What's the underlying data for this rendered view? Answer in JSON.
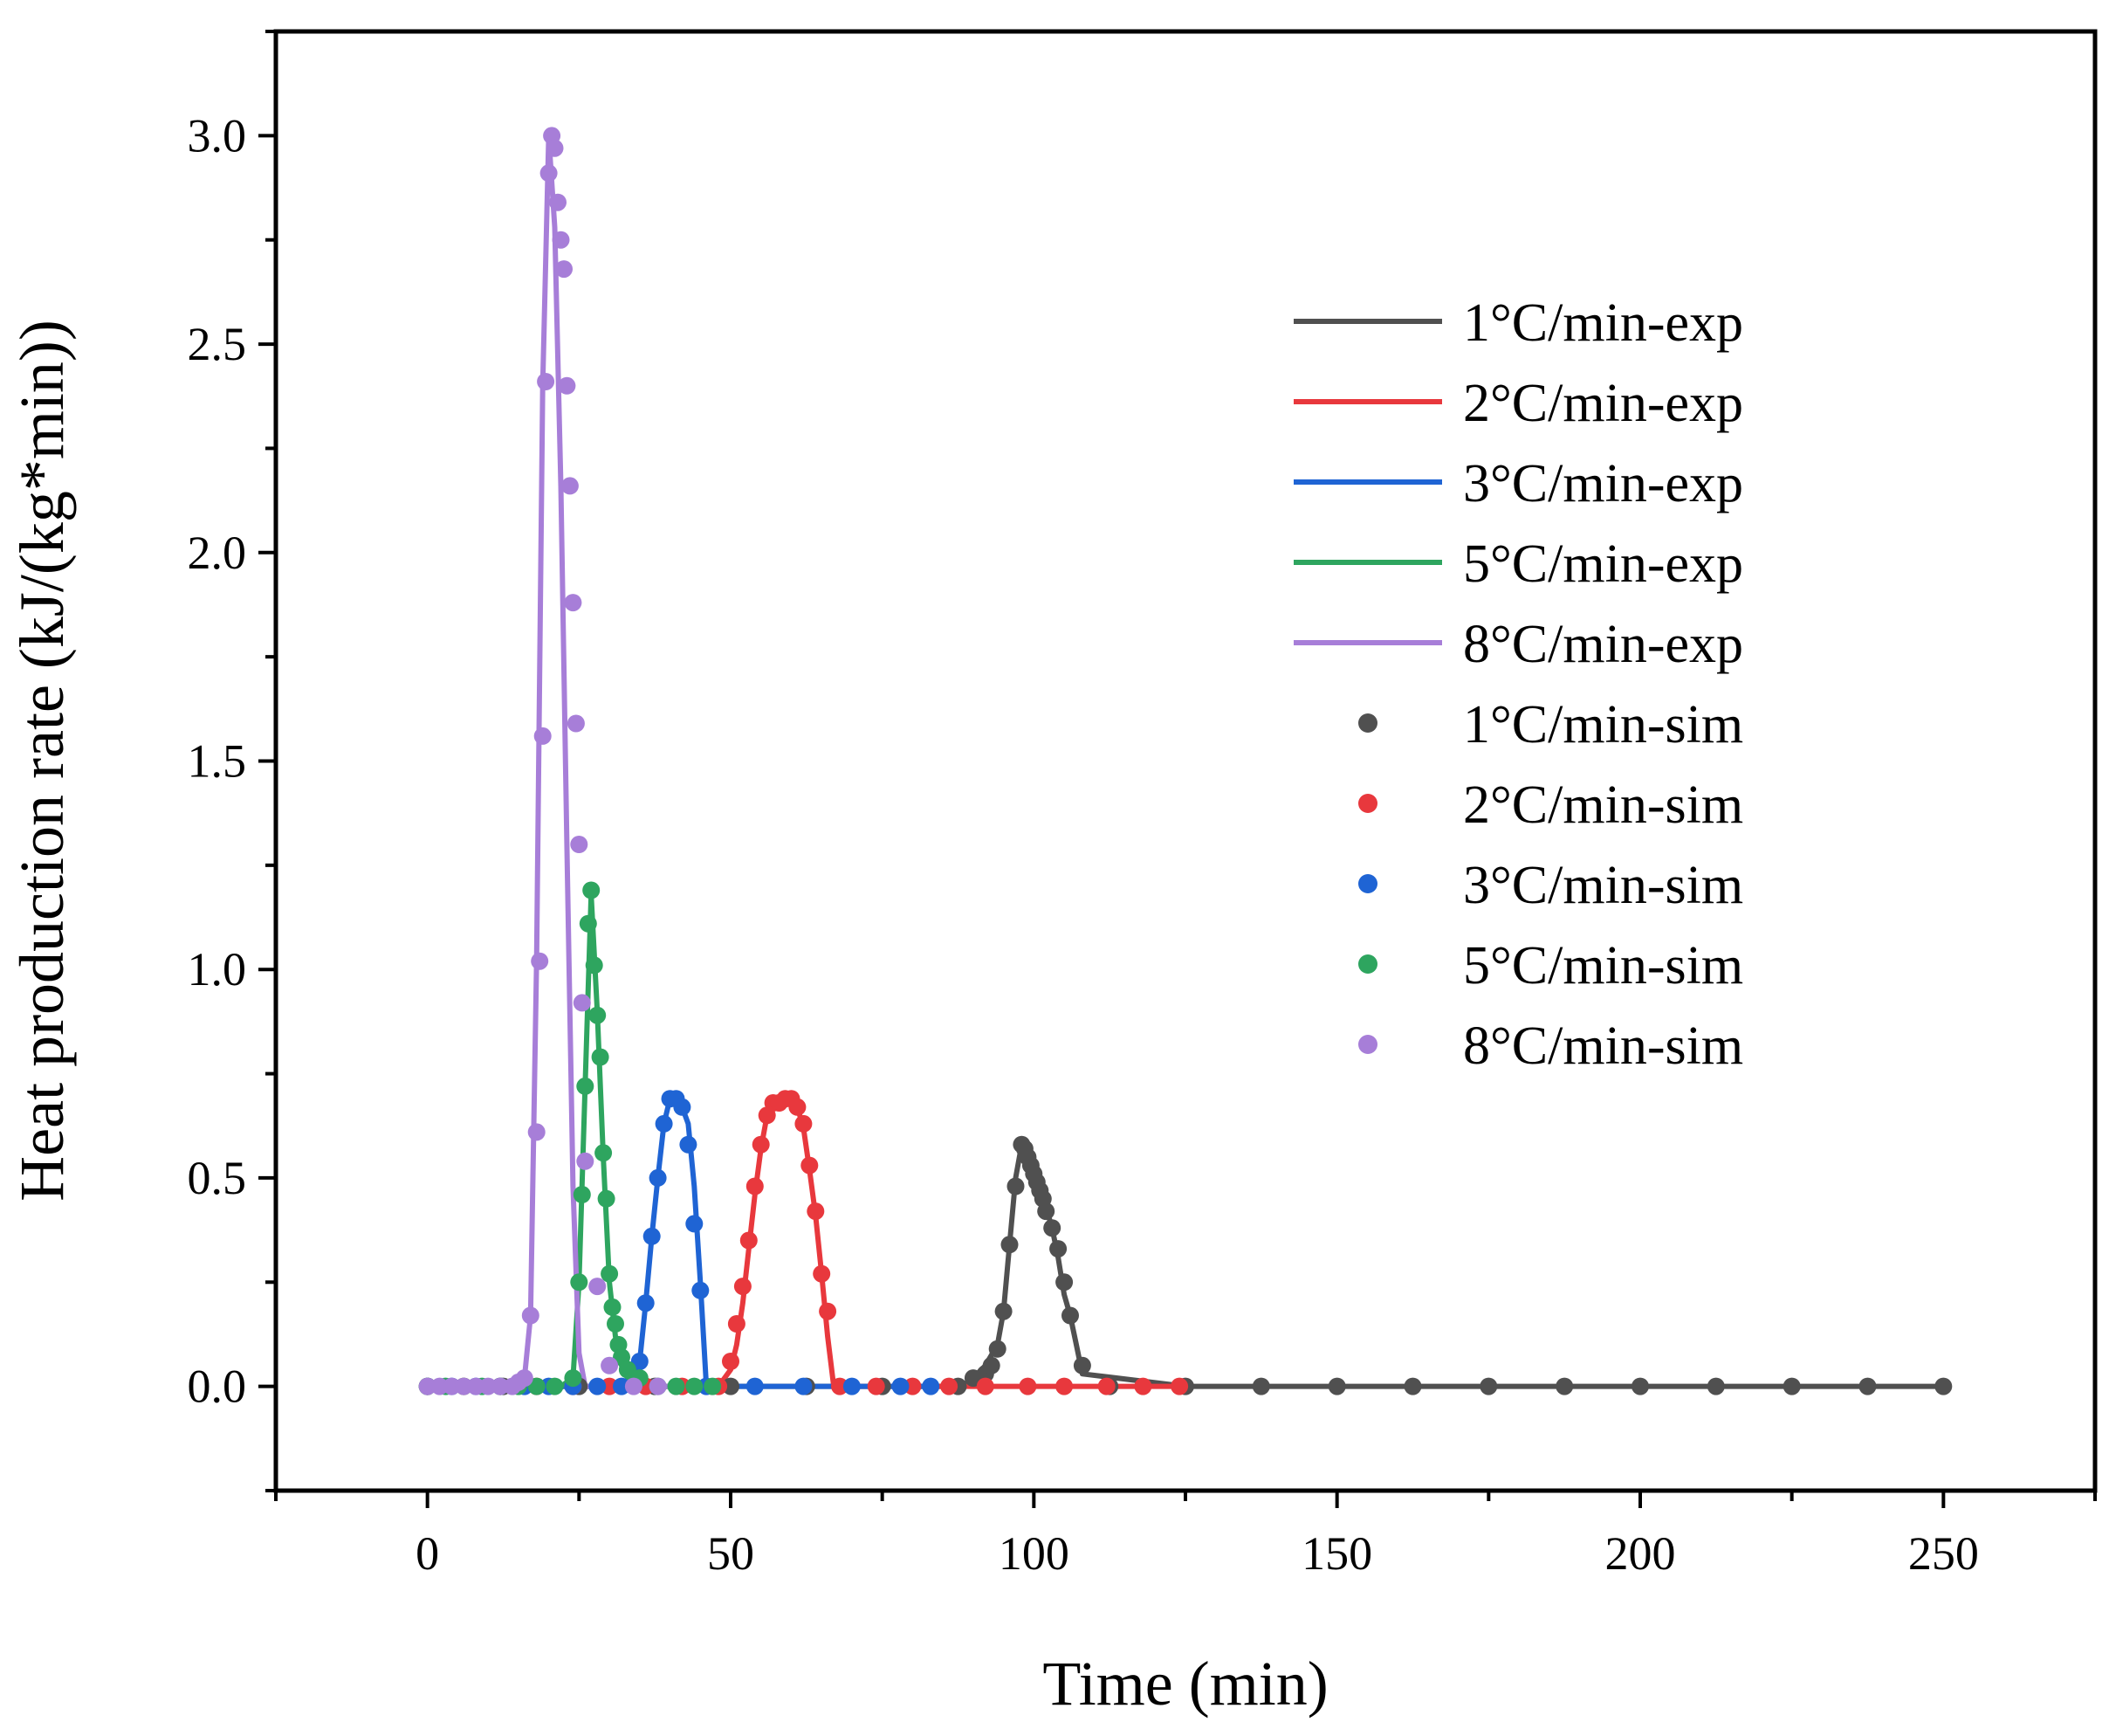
{
  "chart_data": {
    "type": "line",
    "xlabel": "Time (min)",
    "ylabel": "Heat production rate (kJ/(kg*min))",
    "xlim": [
      -25,
      275
    ],
    "ylim": [
      -0.25,
      3.25
    ],
    "x_ticks": [
      0,
      50,
      100,
      150,
      200,
      250
    ],
    "x_tick_labels": [
      "0",
      "50",
      "100",
      "150",
      "200",
      "250"
    ],
    "y_ticks": [
      0.0,
      0.5,
      1.0,
      1.5,
      2.0,
      2.5,
      3.0
    ],
    "y_tick_labels": [
      "0.0",
      "0.5",
      "1.0",
      "1.5",
      "2.0",
      "2.5",
      "3.0"
    ],
    "grid": false,
    "legend_position": "top-right",
    "legend_labels": [
      "1°C/min-exp",
      "2°C/min-exp",
      "3°C/min-exp",
      "5°C/min-exp",
      "8°C/min-exp",
      "1°C/min-sim",
      "2°C/min-sim",
      "3°C/min-sim",
      "5°C/min-sim",
      "8°C/min-sim"
    ],
    "series_colors": [
      "#505050",
      "#e8383d",
      "#1f64d4",
      "#2ea55f",
      "#a77ed8"
    ],
    "series": [
      {
        "name": "1°C/min-exp",
        "kind": "line",
        "x": [
          0,
          50,
          88,
          90,
          92,
          94,
          95,
          96,
          97,
          98,
          99,
          100,
          101,
          102,
          103,
          104,
          105,
          106,
          107,
          108,
          125,
          150,
          200,
          250
        ],
        "y": [
          0,
          0,
          0,
          0.02,
          0.05,
          0.1,
          0.18,
          0.34,
          0.5,
          0.58,
          0.56,
          0.52,
          0.48,
          0.43,
          0.38,
          0.31,
          0.22,
          0.17,
          0.1,
          0.03,
          0,
          0,
          0,
          0
        ]
      },
      {
        "name": "2°C/min-exp",
        "kind": "line",
        "x": [
          0,
          30,
          48,
          50,
          51,
          52,
          53,
          54,
          55,
          56,
          57,
          58,
          59,
          60,
          61,
          62,
          63,
          64,
          65,
          66,
          67,
          80,
          100,
          125
        ],
        "y": [
          0,
          0,
          0,
          0.04,
          0.1,
          0.2,
          0.33,
          0.46,
          0.57,
          0.65,
          0.68,
          0.69,
          0.69,
          0.69,
          0.67,
          0.62,
          0.52,
          0.41,
          0.27,
          0.12,
          0,
          0,
          0,
          0
        ]
      },
      {
        "name": "3°C/min-exp",
        "kind": "line",
        "x": [
          0,
          20,
          34,
          35,
          36,
          37,
          38,
          39,
          40,
          41,
          42,
          43,
          44,
          45,
          46,
          60,
          83
        ],
        "y": [
          0,
          0,
          0,
          0.06,
          0.2,
          0.36,
          0.5,
          0.63,
          0.69,
          0.69,
          0.67,
          0.63,
          0.48,
          0.25,
          0,
          0,
          0
        ]
      },
      {
        "name": "5°C/min-exp",
        "kind": "line",
        "x": [
          0,
          15,
          22,
          24,
          25,
          26,
          27,
          28,
          29,
          30,
          31,
          32,
          33,
          34,
          35,
          40,
          50
        ],
        "y": [
          0,
          0,
          0,
          0.02,
          0.25,
          0.72,
          1.18,
          0.9,
          0.55,
          0.25,
          0.12,
          0.05,
          0.02,
          0.01,
          0,
          0,
          0
        ]
      },
      {
        "name": "8°C/min-exp",
        "kind": "line",
        "x": [
          0,
          10,
          16,
          17,
          18,
          19,
          20,
          21,
          22,
          23,
          24,
          25,
          26,
          28,
          40
        ],
        "y": [
          0,
          0,
          0.02,
          0.17,
          1.02,
          2.4,
          3.0,
          2.78,
          2.16,
          1.3,
          0.48,
          0.08,
          0,
          0,
          0
        ]
      },
      {
        "name": "1°C/min-sim",
        "kind": "scatter",
        "x": [
          0,
          12.5,
          25,
          37.5,
          50,
          62.5,
          75,
          87.5,
          90,
          92,
          93,
          94,
          95,
          96,
          97,
          98,
          98.5,
          99,
          99.5,
          100,
          100.5,
          101,
          101.5,
          102,
          103,
          104,
          105,
          106,
          108,
          112.5,
          125,
          137.5,
          150,
          162.5,
          175,
          187.5,
          200,
          212.5,
          225,
          237.5,
          250
        ],
        "y": [
          0,
          0,
          0,
          0,
          0,
          0,
          0,
          0,
          0.02,
          0.03,
          0.05,
          0.09,
          0.18,
          0.34,
          0.48,
          0.58,
          0.57,
          0.55,
          0.53,
          0.51,
          0.49,
          0.47,
          0.45,
          0.42,
          0.38,
          0.33,
          0.25,
          0.17,
          0.05,
          0,
          0,
          0,
          0,
          0,
          0,
          0,
          0,
          0,
          0,
          0,
          0
        ]
      },
      {
        "name": "2°C/min-sim",
        "kind": "scatter",
        "x": [
          0,
          6,
          12,
          18,
          24,
          30,
          36,
          42,
          48,
          50,
          51,
          52,
          53,
          54,
          55,
          56,
          57,
          58,
          59,
          60,
          61,
          62,
          63,
          64,
          65,
          66,
          68,
          74,
          80,
          86,
          92,
          99,
          105,
          112,
          118,
          124
        ],
        "y": [
          0,
          0,
          0,
          0,
          0,
          0,
          0,
          0,
          0,
          0.06,
          0.15,
          0.24,
          0.35,
          0.48,
          0.58,
          0.65,
          0.68,
          0.68,
          0.69,
          0.69,
          0.67,
          0.63,
          0.53,
          0.42,
          0.27,
          0.18,
          0,
          0,
          0,
          0,
          0,
          0,
          0,
          0,
          0,
          0
        ]
      },
      {
        "name": "3°C/min-sim",
        "kind": "scatter",
        "x": [
          0,
          4,
          8,
          12,
          16,
          20,
          24,
          28,
          32,
          35,
          36,
          37,
          38,
          39,
          40,
          41,
          42,
          43,
          44,
          45,
          46,
          54,
          62,
          70,
          78,
          83
        ],
        "y": [
          0,
          0,
          0,
          0,
          0,
          0,
          0,
          0,
          0,
          0.06,
          0.2,
          0.36,
          0.5,
          0.63,
          0.69,
          0.69,
          0.67,
          0.58,
          0.39,
          0.23,
          0,
          0,
          0,
          0,
          0,
          0
        ]
      },
      {
        "name": "5°C/min-sim",
        "kind": "scatter",
        "x": [
          0,
          3,
          6,
          9,
          12,
          15,
          18,
          21,
          24,
          25,
          25.5,
          26,
          26.5,
          27,
          27.5,
          28,
          28.5,
          29,
          29.5,
          30,
          30.5,
          31,
          31.5,
          32,
          33,
          35,
          38,
          41,
          44,
          47
        ],
        "y": [
          0,
          0,
          0,
          0,
          0,
          0,
          0,
          0,
          0.02,
          0.25,
          0.46,
          0.72,
          1.11,
          1.19,
          1.01,
          0.89,
          0.79,
          0.56,
          0.45,
          0.27,
          0.19,
          0.15,
          0.1,
          0.07,
          0.04,
          0.02,
          0,
          0,
          0,
          0
        ]
      },
      {
        "name": "8°C/min-sim",
        "kind": "scatter",
        "x": [
          0,
          2,
          4,
          6,
          8,
          10,
          12,
          14,
          15,
          16,
          17,
          18,
          18.5,
          19,
          19.5,
          20,
          20.5,
          21,
          21.5,
          22,
          22.5,
          23,
          23.5,
          24,
          24.5,
          25,
          25.5,
          26,
          28,
          30,
          34,
          38
        ],
        "y": [
          0,
          0,
          0,
          0,
          0,
          0,
          0,
          0,
          0.01,
          0.02,
          0.17,
          0.61,
          1.02,
          1.56,
          2.41,
          2.91,
          3.0,
          2.97,
          2.84,
          2.75,
          2.68,
          2.4,
          2.16,
          1.88,
          1.59,
          1.3,
          0.92,
          0.54,
          0.24,
          0.05,
          0,
          0
        ]
      }
    ]
  }
}
